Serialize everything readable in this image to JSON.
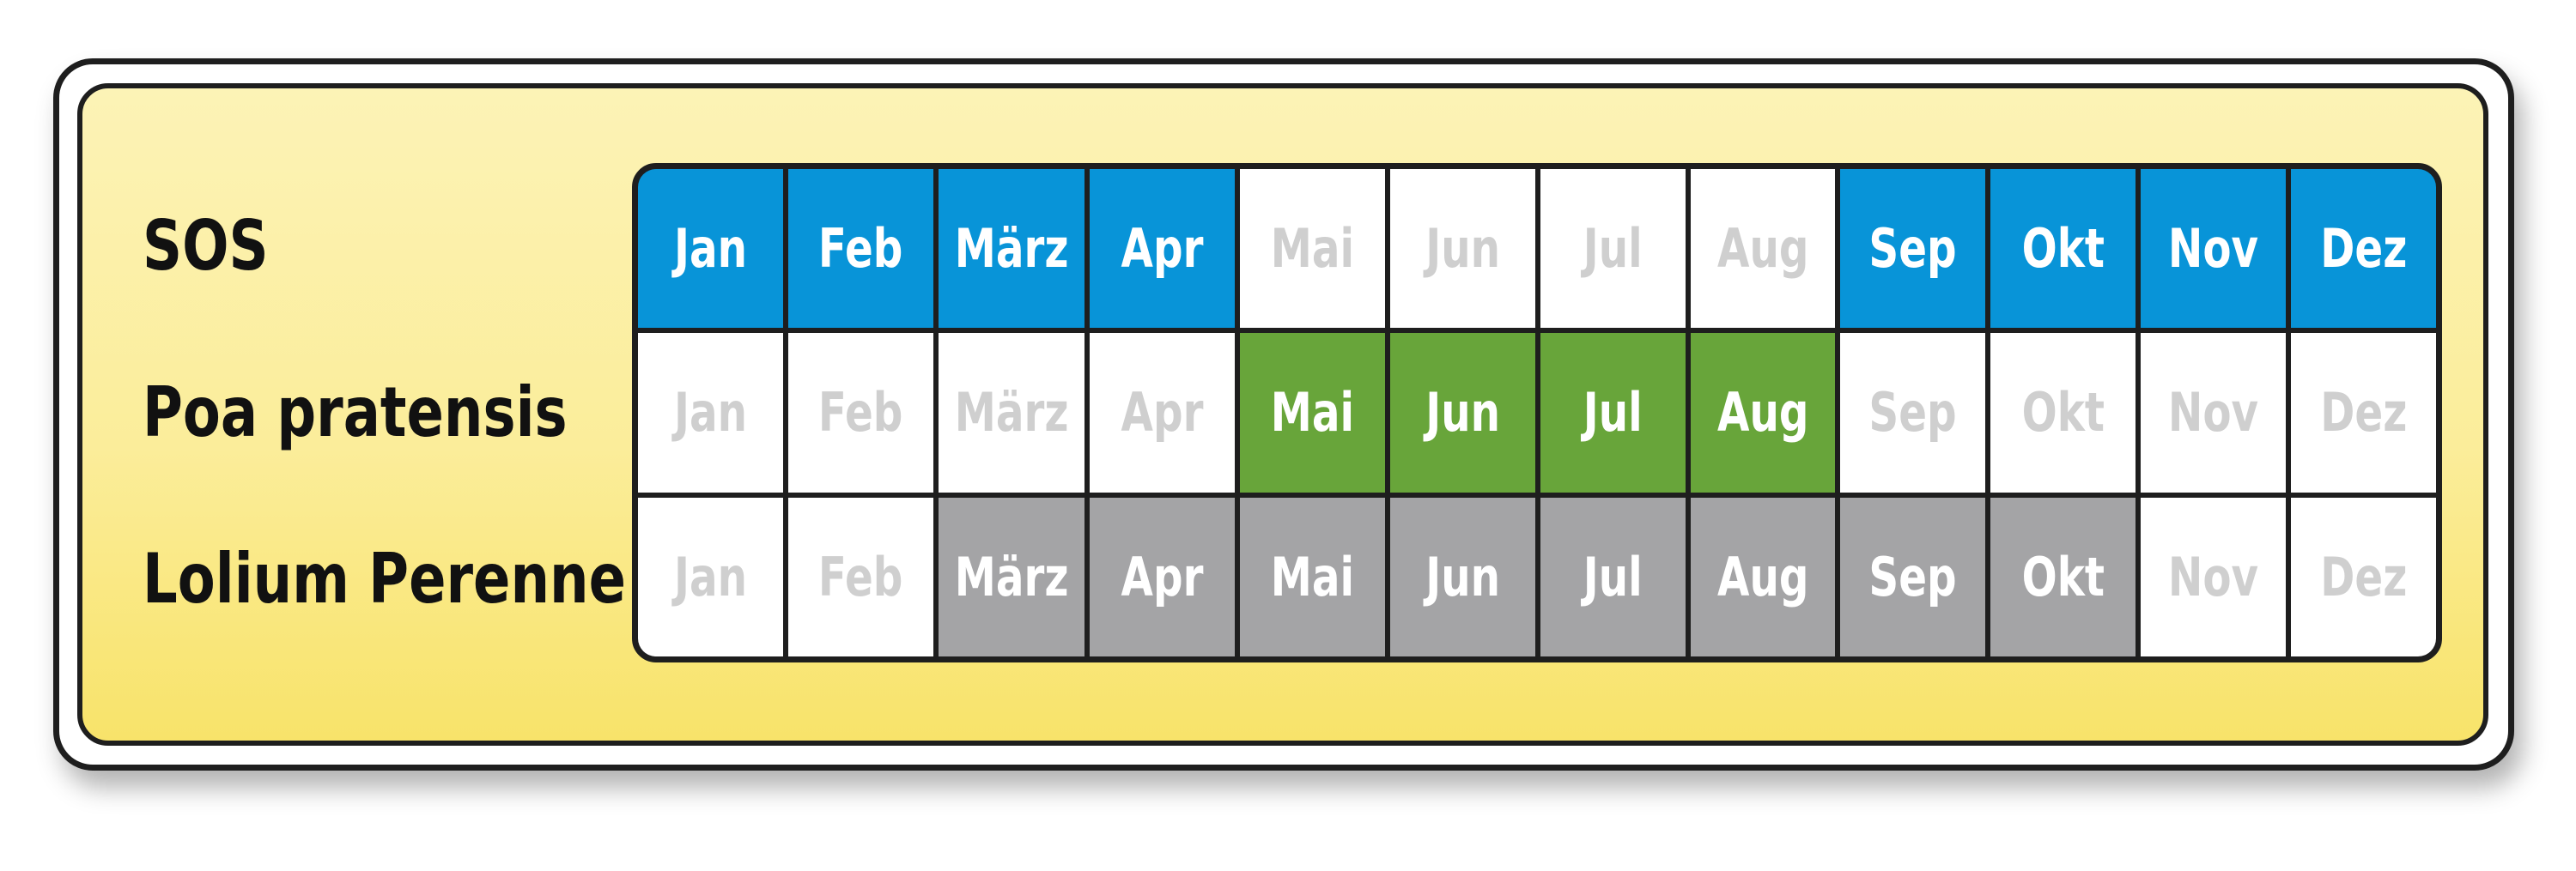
{
  "months": [
    "Jan",
    "Feb",
    "März",
    "Apr",
    "Mai",
    "Jun",
    "Jul",
    "Aug",
    "Sep",
    "Okt",
    "Nov",
    "Dez"
  ],
  "colors": {
    "sos": "#0894d8",
    "poa": "#68a53a",
    "lolium": "#a4a4a6",
    "inactive_text": "#cfcfcf",
    "active_text": "#ffffff"
  },
  "rows": [
    {
      "label": "SOS",
      "color_key": "sos",
      "active": [
        1,
        1,
        1,
        1,
        0,
        0,
        0,
        0,
        1,
        1,
        1,
        1
      ]
    },
    {
      "label": "Poa pratensis",
      "color_key": "poa",
      "active": [
        0,
        0,
        0,
        0,
        1,
        1,
        1,
        1,
        0,
        0,
        0,
        0
      ]
    },
    {
      "label": "Lolium Perenne",
      "color_key": "lolium",
      "active": [
        0,
        0,
        1,
        1,
        1,
        1,
        1,
        1,
        1,
        1,
        0,
        0
      ]
    }
  ]
}
